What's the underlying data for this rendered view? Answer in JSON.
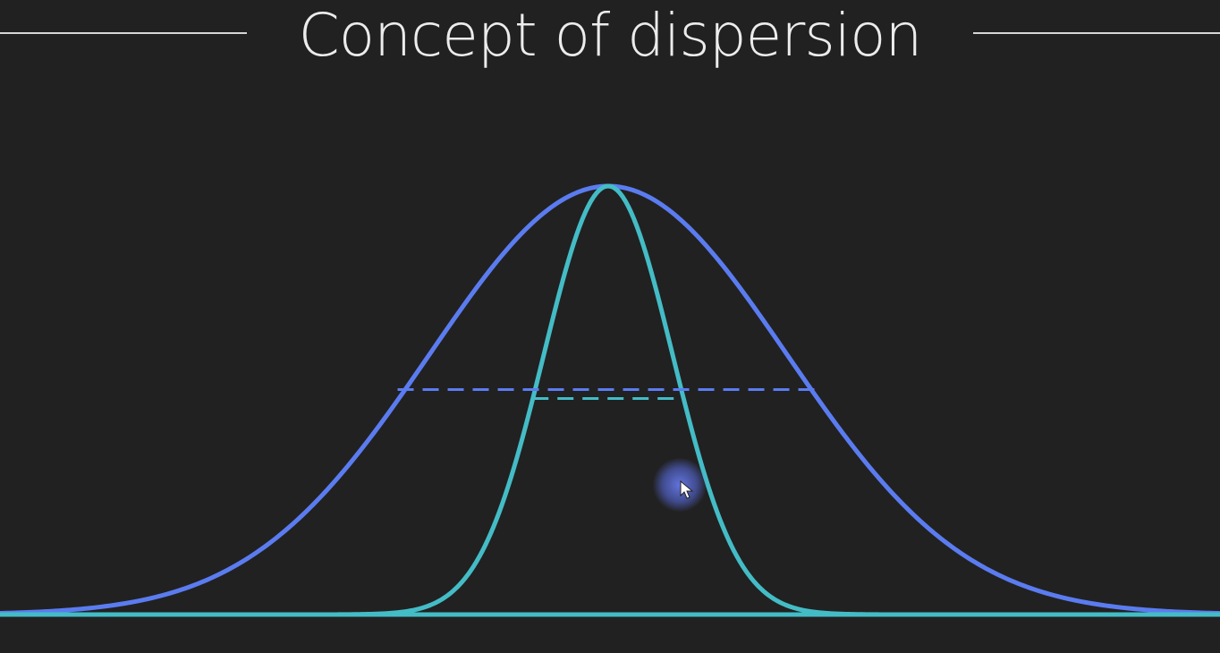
{
  "slide": {
    "title": "Concept of dispersion"
  },
  "diagram": {
    "type": "normal-distribution-comparison",
    "x_range": [
      -4.8,
      4.8
    ],
    "curves": [
      {
        "id": "wide",
        "mean": 0,
        "sigma": 1.0,
        "peak": 1.0,
        "color": "#5b7cf0",
        "half_max_line": "dashed"
      },
      {
        "id": "narrow",
        "mean": 0,
        "sigma": 0.36,
        "peak": 1.0,
        "color": "#44bcc6",
        "half_max_line": "dashed"
      }
    ]
  },
  "colors": {
    "background": "#212121",
    "title": "#ececec",
    "rule": "#d6d6d6",
    "cursor_halo": "#6e82ff"
  },
  "cursor": {
    "icon": "pointer-arrow-icon"
  }
}
